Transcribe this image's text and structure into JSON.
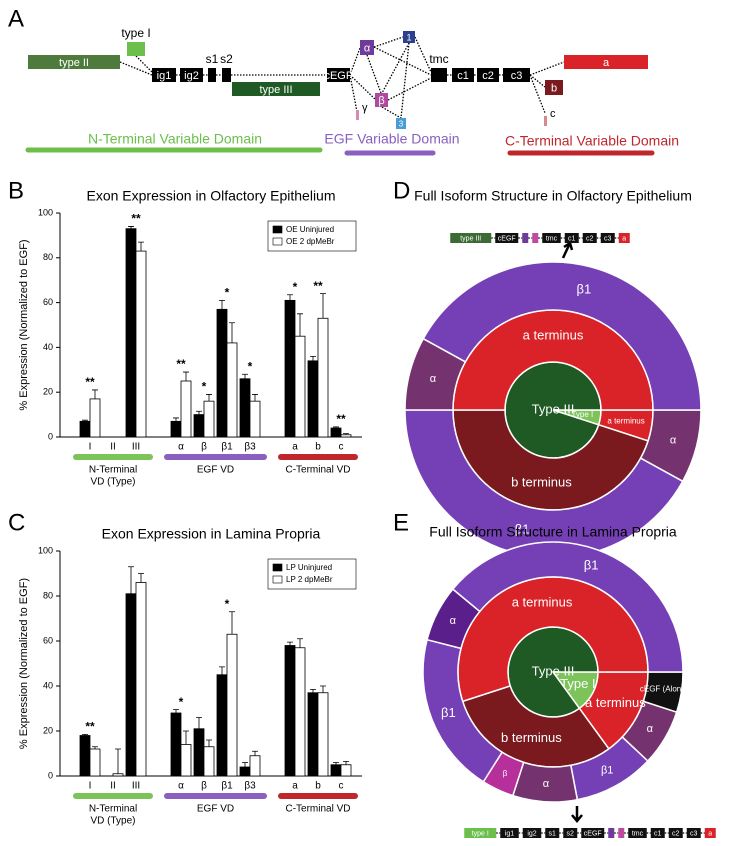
{
  "panel_labels": [
    "A",
    "B",
    "C",
    "D",
    "E"
  ],
  "gene_diagram": {
    "type_ii": "type II",
    "type_i": "type I",
    "ig1": "ig1",
    "ig2": "ig2",
    "s1": "s1",
    "s2": "s2",
    "type_iii": "type III",
    "cegf": "cEGF",
    "alpha": "α",
    "one": "1",
    "beta": "β",
    "three": "3",
    "gamma": "γ",
    "tmc": "tmc",
    "c1": "c1",
    "c2": "c2",
    "c3": "c3",
    "a": "a",
    "b": "b",
    "c": "c",
    "domains": [
      "N-Terminal Variable Domain",
      "EGF Variable Domain",
      "C-Terminal Variable Domain"
    ]
  },
  "chart_data": [
    {
      "type": "bar",
      "title": "Exon Expression in Olfactory Epithelium",
      "y_label": "% Expression (Normalized to EGF)",
      "categories": [
        "I",
        "II",
        "III",
        "α",
        "β",
        "β1",
        "β3",
        "a",
        "b",
        "c"
      ],
      "groups": [
        {
          "label": [
            "N-Terminal",
            "VD (Type)"
          ],
          "color": "#7cc35a",
          "members": [
            "I",
            "II",
            "III"
          ]
        },
        {
          "label": [
            "EGF VD"
          ],
          "color": "#8a5fbf",
          "members": [
            "α",
            "β",
            "β1",
            "β3"
          ]
        },
        {
          "label": [
            "C-Terminal VD"
          ],
          "color": "#c0272d",
          "members": [
            "a",
            "b",
            "c"
          ]
        }
      ],
      "series": [
        {
          "name": "OE Uninjured",
          "color": "#000000",
          "values": [
            7,
            0,
            93,
            7,
            10,
            57,
            26,
            61,
            34,
            4
          ],
          "errors": [
            0.5,
            0,
            1,
            1.5,
            1.5,
            4,
            2,
            2.5,
            2,
            0.5
          ]
        },
        {
          "name": "OE 2 dpMeBr",
          "color": "#ffffff",
          "values": [
            17,
            0,
            83,
            25,
            16,
            42,
            16,
            45,
            53,
            1
          ],
          "errors": [
            4,
            0,
            4,
            4,
            3,
            9,
            3,
            10,
            11,
            0.5
          ]
        }
      ],
      "significance": [
        "**",
        null,
        "**",
        "**",
        "*",
        "*",
        "*",
        "*",
        "**",
        "**"
      ],
      "ylim": [
        0,
        100
      ],
      "yticks": [
        0,
        20,
        40,
        60,
        80,
        100
      ],
      "legend": "top-right"
    },
    {
      "type": "bar",
      "title": "Exon Expression in Lamina Propria",
      "y_label": "% Expression (Normalized to EGF)",
      "categories": [
        "I",
        "II",
        "III",
        "α",
        "β",
        "β1",
        "β3",
        "a",
        "b",
        "c"
      ],
      "groups": [
        {
          "label": [
            "N-Terminal",
            "VD (Type)"
          ],
          "color": "#7cc35a",
          "members": [
            "I",
            "II",
            "III"
          ]
        },
        {
          "label": [
            "EGF VD"
          ],
          "color": "#8a5fbf",
          "members": [
            "α",
            "β",
            "β1",
            "β3"
          ]
        },
        {
          "label": [
            "C-Terminal VD"
          ],
          "color": "#c0272d",
          "members": [
            "a",
            "b",
            "c"
          ]
        }
      ],
      "series": [
        {
          "name": "LP Uninjured",
          "color": "#000000",
          "values": [
            18,
            0,
            81,
            28,
            21,
            45,
            4,
            58,
            37,
            5
          ],
          "errors": [
            0.5,
            0,
            12,
            1.5,
            5,
            3.5,
            2,
            1.5,
            1.5,
            1
          ]
        },
        {
          "name": "LP 2 dpMeBr",
          "color": "#ffffff",
          "values": [
            12,
            1,
            86,
            14,
            13,
            63,
            9,
            57,
            37,
            5
          ],
          "errors": [
            1,
            11,
            4,
            6,
            3,
            10,
            2,
            4,
            3,
            1.5
          ]
        }
      ],
      "significance": [
        "**",
        null,
        null,
        "*",
        null,
        "*",
        null,
        null,
        null,
        null
      ],
      "ylim": [
        0,
        100
      ],
      "yticks": [
        0,
        20,
        40,
        60,
        80,
        100
      ],
      "legend": "top-right"
    },
    {
      "type": "sunburst",
      "title": "Full Isoform Structure in Olfactory Epithelium",
      "structure": [
        {
          "label": "type III",
          "color": "#3d6b35"
        },
        {
          "label": "cEGF",
          "color": "#111111"
        },
        {
          "label": null,
          "color": "#6e3a9b"
        },
        {
          "label": null,
          "color": "#c04aa0"
        },
        {
          "label": "tmc",
          "color": "#111111"
        },
        {
          "label": "c1",
          "color": "#111111"
        },
        {
          "label": "c2",
          "color": "#111111"
        },
        {
          "label": "c3",
          "color": "#111111"
        },
        {
          "label": "a",
          "color": "#d92328"
        }
      ],
      "rings": [
        {
          "segments": [
            {
              "label": "Type I",
              "value": 5,
              "color": "#7cc35a"
            },
            {
              "label": "Type III",
              "value": 95,
              "color": "#1f5a24"
            }
          ]
        },
        {
          "segments": [
            {
              "label": "a terminus",
              "value": 5,
              "color": "#d92328"
            },
            {
              "label": "b terminus",
              "value": 45,
              "color": "#7a1a1f"
            },
            {
              "label": "a terminus",
              "value": 50,
              "color": "#d92328"
            }
          ]
        },
        {
          "segments": [
            {
              "label": "α",
              "value": 8,
              "color": "#74336f"
            },
            {
              "label": "β1",
              "value": 42,
              "color": "#7540b5"
            },
            {
              "label": "α",
              "value": 8,
              "color": "#74336f"
            },
            {
              "label": "β1",
              "value": 42,
              "color": "#7540b5"
            }
          ]
        }
      ]
    },
    {
      "type": "sunburst",
      "title": "Full Isoform Structure in Lamina Propria",
      "structure": [
        {
          "label": "type I",
          "color": "#6bbf4a"
        },
        {
          "label": "ig1",
          "color": "#111111"
        },
        {
          "label": "ig2",
          "color": "#111111"
        },
        {
          "label": "s1",
          "color": "#111111"
        },
        {
          "label": "s2",
          "color": "#111111"
        },
        {
          "label": "cEGF",
          "color": "#111111"
        },
        {
          "label": null,
          "color": "#6e3a9b"
        },
        {
          "label": null,
          "color": "#c04aa0"
        },
        {
          "label": "tmc",
          "color": "#111111"
        },
        {
          "label": "c1",
          "color": "#111111"
        },
        {
          "label": "c2",
          "color": "#111111"
        },
        {
          "label": "c3",
          "color": "#111111"
        },
        {
          "label": "a",
          "color": "#d92328"
        }
      ],
      "rings": [
        {
          "segments": [
            {
              "label": "Type I",
              "value": 15,
              "color": "#7cc35a"
            },
            {
              "label": "Type III",
              "value": 85,
              "color": "#1f5a24"
            }
          ]
        },
        {
          "segments": [
            {
              "label": "a terminus",
              "value": 15,
              "color": "#d92328"
            },
            {
              "label": "b terminus",
              "value": 30,
              "color": "#7a1a1f"
            },
            {
              "label": "a terminus",
              "value": 55,
              "color": "#d92328"
            }
          ]
        },
        {
          "segments": [
            {
              "label": "cEGF (Alone)",
              "value": 5,
              "color": "#111111"
            },
            {
              "label": "α",
              "value": 7,
              "color": "#74336f"
            },
            {
              "label": "β1",
              "value": 10,
              "color": "#7540b5"
            },
            {
              "label": "α",
              "value": 8,
              "color": "#74336f"
            },
            {
              "label": "β",
              "value": 4,
              "color": "#b62f9a"
            },
            {
              "label": "β1",
              "value": 20,
              "color": "#7540b5"
            },
            {
              "label": "α",
              "value": 7,
              "color": "#5a1f8a"
            },
            {
              "label": "β1",
              "value": 39,
              "color": "#7540b5"
            }
          ]
        }
      ]
    }
  ]
}
